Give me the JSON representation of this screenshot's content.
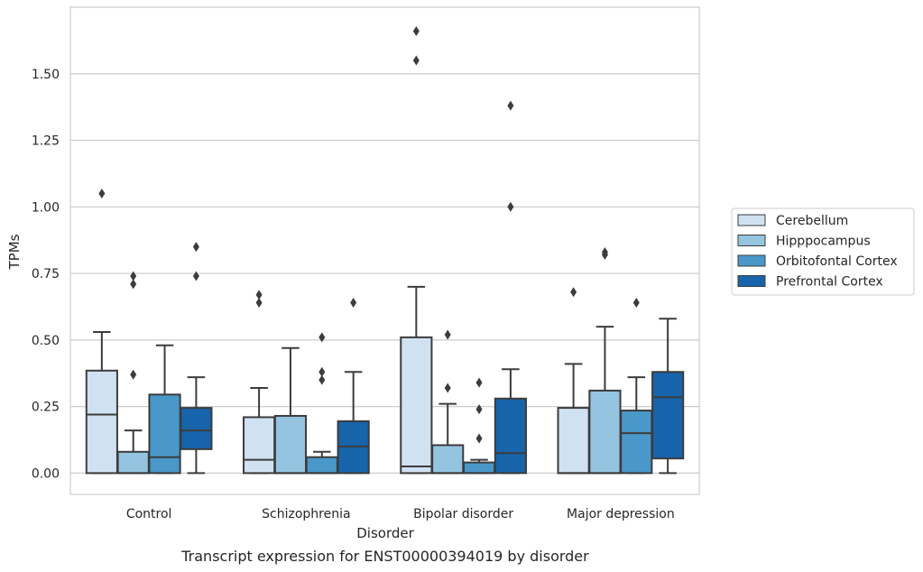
{
  "chart_data": {
    "type": "box",
    "caption": "Transcript expression for ENST00000394019 by disorder",
    "xlabel": "Disorder",
    "ylabel": "TPMs",
    "ylim": [
      -0.08,
      1.75
    ],
    "yticks": [
      0.0,
      0.25,
      0.5,
      0.75,
      1.0,
      1.25,
      1.5
    ],
    "ytick_labels": [
      "0.00",
      "0.25",
      "0.50",
      "0.75",
      "1.00",
      "1.25",
      "1.50"
    ],
    "grid": "horizontal",
    "legend_position": "right",
    "categories": [
      "Control",
      "Schizophrenia",
      "Bipolar disorder",
      "Major depression"
    ],
    "series": [
      {
        "name": "Cerebellum",
        "color": "#d0e1f2",
        "boxes": [
          {
            "whislo": 0.0,
            "q1": 0.0,
            "med": 0.22,
            "q3": 0.385,
            "whishi": 0.53,
            "fliers": [
              1.05
            ]
          },
          {
            "whislo": 0.0,
            "q1": 0.0,
            "med": 0.05,
            "q3": 0.21,
            "whishi": 0.32,
            "fliers": [
              0.64,
              0.67
            ]
          },
          {
            "whislo": 0.0,
            "q1": 0.0,
            "med": 0.025,
            "q3": 0.51,
            "whishi": 0.7,
            "fliers": [
              1.55,
              1.66
            ]
          },
          {
            "whislo": 0.0,
            "q1": 0.0,
            "med": 0.0,
            "q3": 0.245,
            "whishi": 0.41,
            "fliers": [
              0.68
            ]
          }
        ]
      },
      {
        "name": "Hipppocampus",
        "color": "#94c4df",
        "boxes": [
          {
            "whislo": 0.0,
            "q1": 0.0,
            "med": 0.0,
            "q3": 0.08,
            "whishi": 0.16,
            "fliers": [
              0.37,
              0.71,
              0.74
            ]
          },
          {
            "whislo": 0.0,
            "q1": 0.0,
            "med": 0.0,
            "q3": 0.215,
            "whishi": 0.47,
            "fliers": []
          },
          {
            "whislo": 0.0,
            "q1": 0.0,
            "med": 0.0,
            "q3": 0.105,
            "whishi": 0.26,
            "fliers": [
              0.32,
              0.52
            ]
          },
          {
            "whislo": 0.0,
            "q1": 0.0,
            "med": 0.0,
            "q3": 0.31,
            "whishi": 0.55,
            "fliers": [
              0.82,
              0.83
            ]
          }
        ]
      },
      {
        "name": "Orbitofontal Cortex",
        "color": "#4a98c9",
        "boxes": [
          {
            "whislo": 0.0,
            "q1": 0.0,
            "med": 0.06,
            "q3": 0.295,
            "whishi": 0.48,
            "fliers": []
          },
          {
            "whislo": 0.0,
            "q1": 0.0,
            "med": 0.0,
            "q3": 0.06,
            "whishi": 0.08,
            "fliers": [
              0.35,
              0.38,
              0.51
            ]
          },
          {
            "whislo": 0.0,
            "q1": 0.0,
            "med": 0.0,
            "q3": 0.04,
            "whishi": 0.05,
            "fliers": [
              0.13,
              0.24,
              0.34
            ]
          },
          {
            "whislo": 0.0,
            "q1": 0.0,
            "med": 0.15,
            "q3": 0.235,
            "whishi": 0.36,
            "fliers": [
              0.64
            ]
          }
        ]
      },
      {
        "name": "Prefrontal Cortex",
        "color": "#1764ab",
        "boxes": [
          {
            "whislo": 0.0,
            "q1": 0.09,
            "med": 0.16,
            "q3": 0.245,
            "whishi": 0.36,
            "fliers": [
              0.74,
              0.85
            ]
          },
          {
            "whislo": 0.0,
            "q1": 0.0,
            "med": 0.1,
            "q3": 0.195,
            "whishi": 0.38,
            "fliers": [
              0.64
            ]
          },
          {
            "whislo": 0.0,
            "q1": 0.0,
            "med": 0.075,
            "q3": 0.28,
            "whishi": 0.39,
            "fliers": [
              1.0,
              1.38
            ]
          },
          {
            "whislo": 0.0,
            "q1": 0.055,
            "med": 0.285,
            "q3": 0.38,
            "whishi": 0.58,
            "fliers": []
          }
        ]
      }
    ]
  }
}
